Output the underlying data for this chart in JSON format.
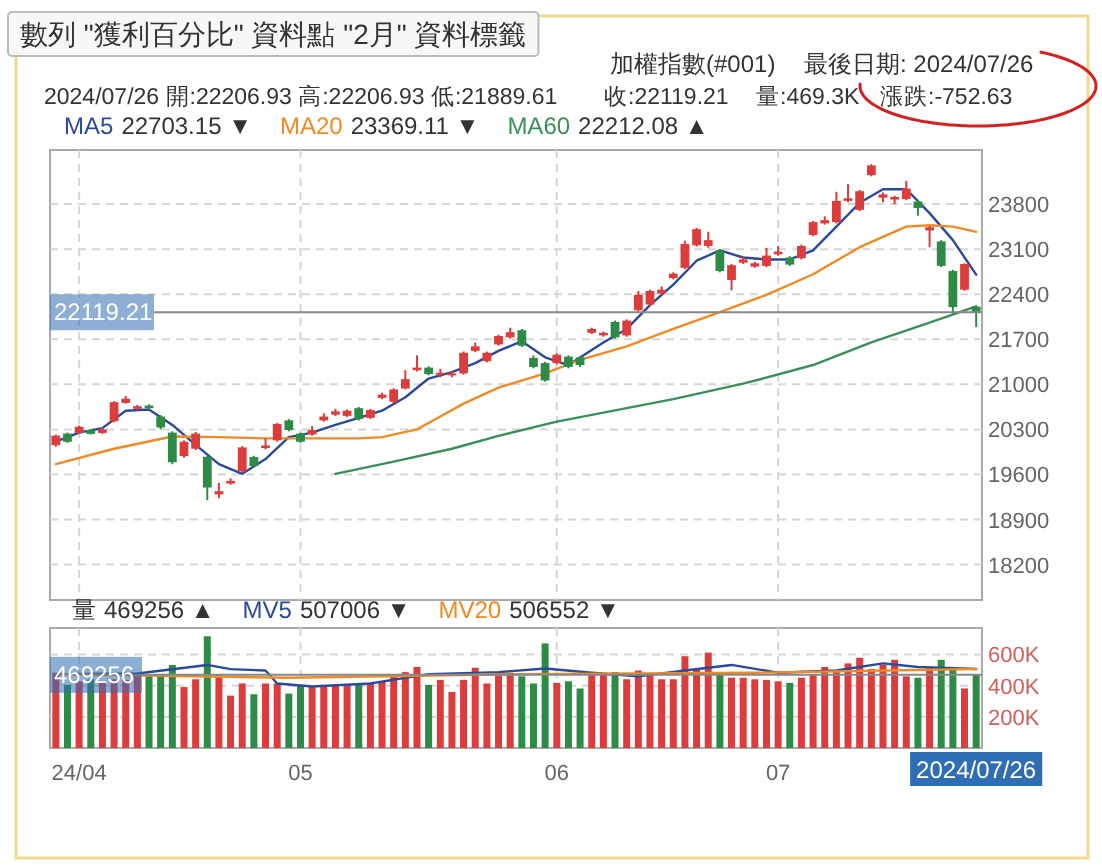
{
  "chart_data": [
    {
      "type": "candlestick",
      "title": "加權指數(#001)",
      "subtitle": "最後日期: 2024/07/26",
      "categories": [
        null,
        null,
        null,
        null,
        null,
        null,
        null,
        null,
        null,
        null,
        null,
        null,
        null,
        null,
        null,
        null,
        null,
        null,
        null,
        null,
        null,
        null,
        null,
        null,
        null,
        null,
        null,
        null,
        null,
        null,
        null,
        null,
        null,
        null,
        null,
        null,
        null,
        null,
        null,
        null,
        null,
        null,
        null,
        null,
        null,
        null,
        null,
        null,
        null,
        null,
        null,
        null,
        null,
        null,
        null,
        null,
        null,
        null,
        null,
        null,
        null,
        null,
        null,
        null,
        null,
        null,
        null,
        null,
        null,
        null,
        null,
        null,
        null,
        null,
        null,
        null,
        null,
        null,
        null,
        null
      ],
      "ohlc": [
        [
          20055,
          20220,
          20030,
          20203
        ],
        [
          20235,
          20250,
          20090,
          20108
        ],
        [
          20245,
          20360,
          20230,
          20341
        ],
        [
          20290,
          20300,
          20220,
          20230
        ],
        [
          20245,
          20320,
          20230,
          20300
        ],
        [
          20426,
          20740,
          20410,
          20723
        ],
        [
          20712,
          20820,
          20700,
          20776
        ],
        [
          20620,
          20680,
          20600,
          20660
        ],
        [
          20670,
          20690,
          20610,
          20630
        ],
        [
          20500,
          20520,
          20300,
          20330
        ],
        [
          20250,
          20270,
          19760,
          19790
        ],
        [
          19885,
          20130,
          19860,
          20108
        ],
        [
          20000,
          20260,
          19980,
          20235
        ],
        [
          19874,
          19890,
          19200,
          19397
        ],
        [
          19290,
          19470,
          19230,
          19340
        ],
        [
          19460,
          19540,
          19440,
          19500
        ],
        [
          19650,
          20040,
          19630,
          20020
        ],
        [
          19870,
          19890,
          19710,
          19730
        ],
        [
          20010,
          20160,
          19990,
          20050
        ],
        [
          20130,
          20400,
          20110,
          20385
        ],
        [
          20440,
          20460,
          20270,
          20290
        ],
        [
          20235,
          20250,
          20090,
          20108
        ],
        [
          20220,
          20350,
          20200,
          20290
        ],
        [
          20440,
          20550,
          20420,
          20500
        ],
        [
          20530,
          20620,
          20510,
          20580
        ],
        [
          20510,
          20610,
          20490,
          20590
        ],
        [
          20630,
          20650,
          20440,
          20460
        ],
        [
          20480,
          20620,
          20460,
          20600
        ],
        [
          20790,
          20870,
          20770,
          20840
        ],
        [
          20730,
          20940,
          20710,
          20920
        ],
        [
          20935,
          21220,
          20920,
          21080
        ],
        [
          21220,
          21450,
          21200,
          21260
        ],
        [
          21260,
          21280,
          21140,
          21160
        ],
        [
          21150,
          21240,
          21110,
          21180
        ],
        [
          21140,
          21200,
          21110,
          21170
        ],
        [
          21170,
          21510,
          21150,
          21490
        ],
        [
          21520,
          21650,
          21500,
          21590
        ],
        [
          21360,
          21510,
          21340,
          21490
        ],
        [
          21620,
          21770,
          21600,
          21750
        ],
        [
          21730,
          21880,
          21710,
          21810
        ],
        [
          21840,
          21860,
          21580,
          21600
        ],
        [
          21410,
          21450,
          21250,
          21270
        ],
        [
          21330,
          21350,
          21040,
          21060
        ],
        [
          21330,
          21480,
          21310,
          21460
        ],
        [
          21430,
          21450,
          21250,
          21270
        ],
        [
          21420,
          21440,
          21270,
          21300
        ],
        [
          21800,
          21880,
          21780,
          21860
        ],
        [
          21760,
          21820,
          21740,
          21800
        ],
        [
          21970,
          21990,
          21710,
          21730
        ],
        [
          21760,
          22010,
          21740,
          21990
        ],
        [
          22150,
          22450,
          22130,
          22390
        ],
        [
          22240,
          22470,
          22220,
          22450
        ],
        [
          22410,
          22520,
          22390,
          22470
        ],
        [
          22650,
          22740,
          22630,
          22720
        ],
        [
          22810,
          23230,
          22790,
          23180
        ],
        [
          23160,
          23430,
          23140,
          23410
        ],
        [
          23150,
          23370,
          23120,
          23240
        ],
        [
          23080,
          23100,
          22740,
          22760
        ],
        [
          22620,
          22870,
          22460,
          22850
        ],
        [
          22890,
          22990,
          22870,
          22940
        ],
        [
          22830,
          22900,
          22810,
          22880
        ],
        [
          22840,
          23120,
          22820,
          23000
        ],
        [
          23020,
          23150,
          23000,
          23060
        ],
        [
          22970,
          22990,
          22840,
          22860
        ],
        [
          22960,
          23170,
          22940,
          23150
        ],
        [
          23320,
          23540,
          23300,
          23520
        ],
        [
          23500,
          23610,
          23480,
          23550
        ],
        [
          23520,
          23990,
          23500,
          23850
        ],
        [
          23850,
          24110,
          23830,
          23890
        ],
        [
          23710,
          24020,
          23690,
          24000
        ],
        [
          24250,
          24420,
          24230,
          24400
        ],
        [
          23900,
          23980,
          23830,
          23950
        ],
        [
          23870,
          23930,
          23800,
          23910
        ],
        [
          23880,
          24160,
          23860,
          24040
        ],
        [
          23840,
          23870,
          23620,
          23740
        ],
        [
          23390,
          23460,
          23130,
          23440
        ],
        [
          23220,
          23240,
          22820,
          22840
        ],
        [
          22760,
          22780,
          22090,
          22200
        ],
        [
          22470,
          22880,
          22450,
          22870
        ],
        [
          22206.93,
          22206.93,
          21889.61,
          22119.21
        ]
      ],
      "colors": [
        "#dc3c3c",
        "#2e8b45",
        "#dc3c3c",
        "#2e8b45",
        "#dc3c3c",
        "#dc3c3c",
        "#dc3c3c",
        "#dc3c3c",
        "#2e8b45",
        "#2e8b45",
        "#2e8b45",
        "#dc3c3c",
        "#dc3c3c",
        "#2e8b45",
        "#dc3c3c",
        "#dc3c3c",
        "#dc3c3c",
        "#2e8b45",
        "#dc3c3c",
        "#dc3c3c",
        "#2e8b45",
        "#2e8b45",
        "#dc3c3c",
        "#dc3c3c",
        "#dc3c3c",
        "#dc3c3c",
        "#2e8b45",
        "#dc3c3c",
        "#dc3c3c",
        "#dc3c3c",
        "#dc3c3c",
        "#dc3c3c",
        "#2e8b45",
        "#dc3c3c",
        "#dc3c3c",
        "#dc3c3c",
        "#dc3c3c",
        "#dc3c3c",
        "#dc3c3c",
        "#dc3c3c",
        "#2e8b45",
        "#2e8b45",
        "#2e8b45",
        "#dc3c3c",
        "#2e8b45",
        "#2e8b45",
        "#dc3c3c",
        "#dc3c3c",
        "#2e8b45",
        "#dc3c3c",
        "#dc3c3c",
        "#dc3c3c",
        "#dc3c3c",
        "#dc3c3c",
        "#dc3c3c",
        "#dc3c3c",
        "#dc3c3c",
        "#2e8b45",
        "#dc3c3c",
        "#dc3c3c",
        "#dc3c3c",
        "#dc3c3c",
        "#dc3c3c",
        "#2e8b45",
        "#dc3c3c",
        "#dc3c3c",
        "#dc3c3c",
        "#dc3c3c",
        "#dc3c3c",
        "#dc3c3c",
        "#dc3c3c",
        "#dc3c3c",
        "#dc3c3c",
        "#dc3c3c",
        "#2e8b45",
        "#dc3c3c",
        "#2e8b45",
        "#2e8b45",
        "#dc3c3c",
        "#2e8b45"
      ],
      "series": [
        {
          "name": "MA5",
          "type": "line",
          "color": "#2b4a9c",
          "values": [
            20110,
            null,
            20250,
            null,
            20320,
            null,
            20590,
            null,
            20610,
            null,
            20370,
            null,
            20060,
            null,
            19760,
            null,
            19610,
            null,
            19840,
            null,
            20180,
            null,
            20250,
            null,
            20370,
            null,
            20480,
            null,
            20590,
            null,
            20800,
            null,
            21090,
            null,
            21190,
            null,
            21330,
            null,
            21520,
            null,
            21670,
            null,
            21420,
            null,
            21300,
            null,
            null,
            21650,
            null,
            21860,
            null,
            22230,
            null,
            22550,
            null,
            22920,
            null,
            23080,
            null,
            22970,
            null,
            22940,
            null,
            22940,
            null,
            23080,
            null,
            23450,
            null,
            23820,
            null,
            24030,
            null,
            24030,
            null,
            23660,
            null,
            23240,
            null,
            22703.15
          ]
        },
        {
          "name": "MA20",
          "type": "line",
          "color": "#f08a24",
          "values": [
            19760,
            null,
            null,
            null,
            null,
            20000,
            null,
            null,
            null,
            null,
            20190,
            null,
            null,
            null,
            20180,
            null,
            null,
            null,
            20160,
            null,
            null,
            null,
            20160,
            null,
            null,
            null,
            20160,
            null,
            20180,
            null,
            null,
            20300,
            null,
            20500,
            null,
            20700,
            null,
            null,
            20950,
            null,
            null,
            null,
            21170,
            null,
            null,
            21380,
            null,
            null,
            null,
            21590,
            null,
            null,
            null,
            21860,
            null,
            null,
            null,
            22120,
            null,
            null,
            null,
            22390,
            null,
            null,
            null,
            22710,
            null,
            null,
            null,
            23130,
            null,
            null,
            null,
            23450,
            null,
            23470,
            null,
            23450,
            null,
            23369.11
          ]
        },
        {
          "name": "MA60",
          "type": "line",
          "color": "#3a8f5a",
          "values": [
            null,
            null,
            null,
            null,
            null,
            null,
            null,
            null,
            null,
            null,
            null,
            null,
            null,
            null,
            null,
            null,
            null,
            null,
            null,
            null,
            null,
            null,
            null,
            null,
            19610,
            null,
            null,
            null,
            null,
            19800,
            null,
            null,
            null,
            null,
            20000,
            null,
            null,
            null,
            20200,
            null,
            null,
            null,
            null,
            20420,
            null,
            null,
            null,
            20560,
            null,
            null,
            null,
            null,
            null,
            20770,
            null,
            null,
            null,
            null,
            null,
            21010,
            null,
            null,
            null,
            null,
            null,
            21300,
            null,
            null,
            null,
            null,
            21650,
            null,
            null,
            null,
            null,
            null,
            22020,
            null,
            null,
            22212.08
          ]
        }
      ],
      "ylim": [
        17650,
        24640
      ],
      "yticks": [
        18200,
        18900,
        19600,
        20300,
        21000,
        21700,
        22400,
        23100,
        23800
      ],
      "grid": true,
      "legend": "top left",
      "tick_labels": "y",
      "ref_lines": [
        {
          "axis": "y",
          "value": 22119.21,
          "label": "22119.21",
          "color": "#888888"
        }
      ],
      "annotations": [
        "2024/07/26 開:22206.93 高:22206.93 低:21889.61",
        "收:22119.21",
        "量:469.3K",
        "漲跌:-752.63",
        "22703.15 ▼",
        "23369.11 ▼",
        "22212.08 ▲",
        "數列 \"獲利百分比\" 資料點 \"2月\" 資料標籤"
      ]
    },
    {
      "type": "bar",
      "categories": [
        null,
        null,
        "24/04",
        null,
        null,
        null,
        null,
        null,
        null,
        null,
        null,
        null,
        null,
        null,
        null,
        null,
        null,
        null,
        null,
        null,
        null,
        "05",
        null,
        null,
        null,
        null,
        null,
        null,
        null,
        null,
        null,
        null,
        null,
        null,
        null,
        null,
        null,
        null,
        null,
        null,
        null,
        null,
        null,
        "06",
        null,
        null,
        null,
        null,
        null,
        null,
        null,
        null,
        null,
        null,
        null,
        null,
        null,
        null,
        null,
        null,
        null,
        null,
        "07",
        null,
        null,
        null,
        null,
        null,
        null,
        null,
        null,
        null,
        null,
        null,
        null,
        null,
        null,
        null,
        null,
        "2024/07/26"
      ],
      "series": [
        {
          "name": "量",
          "type": "bar",
          "values": [
            483000,
            405000,
            428000,
            441000,
            428000,
            441000,
            437000,
            474000,
            464000,
            464000,
            533000,
            391000,
            441000,
            717000,
            469000,
            336000,
            414000,
            345000,
            414000,
            414000,
            349000,
            405000,
            395000,
            395000,
            405000,
            405000,
            405000,
            414000,
            428000,
            460000,
            487000,
            520000,
            405000,
            437000,
            359000,
            437000,
            515000,
            414000,
            487000,
            483000,
            460000,
            414000,
            671000,
            418000,
            428000,
            382000,
            474000,
            474000,
            487000,
            441000,
            497000,
            464000,
            441000,
            441000,
            589000,
            506000,
            612000,
            487000,
            451000,
            451000,
            441000,
            437000,
            428000,
            418000,
            451000,
            474000,
            520000,
            487000,
            543000,
            579000,
            506000,
            533000,
            566000,
            460000,
            451000,
            520000,
            566000,
            520000,
            382000,
            469256
          ],
          "colors": [
            "#dc3c3c",
            "#2e8b45",
            "#dc3c3c",
            "#2e8b45",
            "#dc3c3c",
            "#dc3c3c",
            "#dc3c3c",
            "#dc3c3c",
            "#2e8b45",
            "#2e8b45",
            "#2e8b45",
            "#dc3c3c",
            "#dc3c3c",
            "#2e8b45",
            "#dc3c3c",
            "#dc3c3c",
            "#dc3c3c",
            "#2e8b45",
            "#dc3c3c",
            "#dc3c3c",
            "#2e8b45",
            "#2e8b45",
            "#dc3c3c",
            "#dc3c3c",
            "#dc3c3c",
            "#dc3c3c",
            "#2e8b45",
            "#dc3c3c",
            "#dc3c3c",
            "#dc3c3c",
            "#dc3c3c",
            "#dc3c3c",
            "#2e8b45",
            "#dc3c3c",
            "#dc3c3c",
            "#dc3c3c",
            "#dc3c3c",
            "#dc3c3c",
            "#dc3c3c",
            "#dc3c3c",
            "#2e8b45",
            "#2e8b45",
            "#2e8b45",
            "#dc3c3c",
            "#2e8b45",
            "#2e8b45",
            "#dc3c3c",
            "#dc3c3c",
            "#2e8b45",
            "#dc3c3c",
            "#dc3c3c",
            "#dc3c3c",
            "#dc3c3c",
            "#dc3c3c",
            "#dc3c3c",
            "#dc3c3c",
            "#dc3c3c",
            "#2e8b45",
            "#dc3c3c",
            "#dc3c3c",
            "#dc3c3c",
            "#dc3c3c",
            "#dc3c3c",
            "#2e8b45",
            "#dc3c3c",
            "#dc3c3c",
            "#dc3c3c",
            "#dc3c3c",
            "#dc3c3c",
            "#dc3c3c",
            "#dc3c3c",
            "#dc3c3c",
            "#dc3c3c",
            "#dc3c3c",
            "#2e8b45",
            "#dc3c3c",
            "#2e8b45",
            "#2e8b45",
            "#dc3c3c",
            "#2e8b45"
          ]
        },
        {
          "name": "MV5",
          "type": "line",
          "color": "#2b4a9c",
          "values": [
            474000,
            null,
            null,
            null,
            null,
            null,
            null,
            478000,
            null,
            null,
            null,
            null,
            null,
            533000,
            null,
            506000,
            null,
            null,
            497000,
            414000,
            null,
            null,
            395000,
            null,
            null,
            null,
            null,
            414000,
            null,
            null,
            null,
            null,
            474000,
            null,
            null,
            null,
            null,
            null,
            487000,
            null,
            null,
            null,
            510000,
            null,
            null,
            null,
            483000,
            null,
            null,
            null,
            460000,
            null,
            null,
            null,
            497000,
            null,
            null,
            null,
            533000,
            null,
            null,
            null,
            483000,
            null,
            null,
            null,
            null,
            497000,
            null,
            null,
            null,
            543000,
            null,
            null,
            520000,
            null,
            null,
            null,
            null,
            507006
          ]
        },
        {
          "name": "MV20",
          "type": "line",
          "color": "#f08a24",
          "values": [
            474000,
            null,
            null,
            null,
            null,
            null,
            null,
            null,
            null,
            null,
            null,
            null,
            null,
            null,
            null,
            null,
            null,
            null,
            null,
            null,
            451000,
            null,
            null,
            null,
            null,
            null,
            null,
            null,
            null,
            null,
            null,
            null,
            null,
            null,
            null,
            null,
            null,
            null,
            null,
            null,
            474000,
            null,
            null,
            null,
            null,
            null,
            null,
            null,
            null,
            null,
            null,
            null,
            null,
            null,
            null,
            null,
            null,
            null,
            null,
            null,
            483000,
            null,
            null,
            null,
            null,
            null,
            null,
            null,
            null,
            null,
            null,
            null,
            null,
            null,
            null,
            null,
            null,
            null,
            null,
            506552
          ]
        }
      ],
      "ylim": [
        0,
        770000
      ],
      "yticks": [
        {
          "value": 200000,
          "label": "200K"
        },
        {
          "value": 400000,
          "label": "400K"
        },
        {
          "value": 600000,
          "label": "600K"
        }
      ],
      "grid": true,
      "legend": "top left",
      "ref_lines": [
        {
          "axis": "y",
          "value": 469256,
          "label": "469256",
          "color": "#888888"
        }
      ],
      "annotations": [
        "469256 ▲",
        "507006 ▼",
        "506552 ▼"
      ]
    }
  ]
}
